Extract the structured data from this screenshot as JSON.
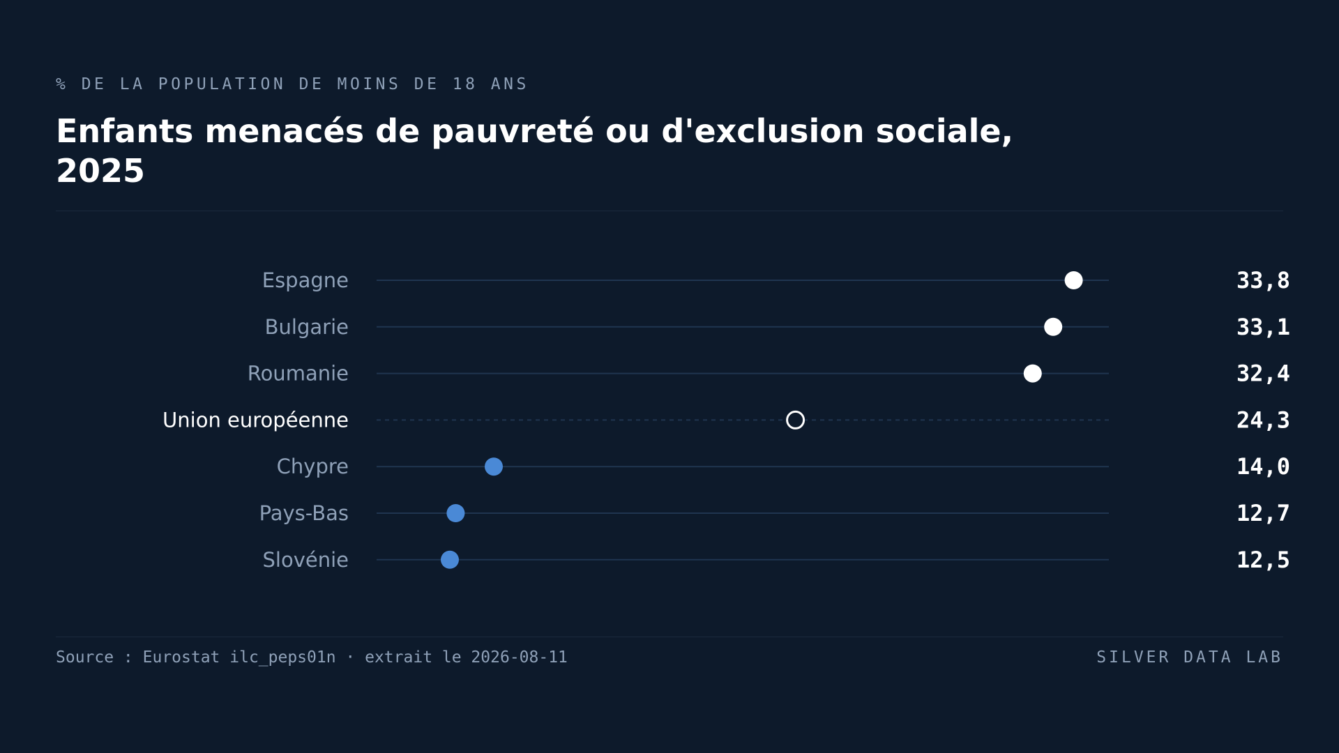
{
  "header": {
    "kicker": "% DE LA POPULATION DE MOINS DE 18 ANS",
    "title": "Enfants menacés de pauvreté ou d'exclusion sociale, 2025"
  },
  "footer": {
    "source": "Source : Eurostat ilc_peps01n · extrait le 2026-08-11",
    "brand": "SILVER DATA LAB"
  },
  "colors": {
    "background": "#0d1a2b",
    "track": "#1f3550",
    "high_dot": "#ffffff",
    "low_dot": "#4a89d6",
    "reference_dot_stroke": "#ffffff",
    "label": "#8fa1b8",
    "reference_label": "#ffffff",
    "value": "#ffffff"
  },
  "chart_data": {
    "type": "dot",
    "title": "Enfants menacés de pauvreté ou d'exclusion sociale, 2025",
    "subtitle": "% DE LA POPULATION DE MOINS DE 18 ANS",
    "xlabel": "",
    "ylabel": "",
    "xlim": [
      10,
      35
    ],
    "grid": false,
    "legend": "none",
    "categories": [
      "Espagne",
      "Bulgarie",
      "Roumanie",
      "Union européenne",
      "Chypre",
      "Pays-Bas",
      "Slovénie"
    ],
    "values": [
      33.8,
      33.1,
      32.4,
      24.3,
      14.0,
      12.7,
      12.5
    ],
    "value_labels": [
      "33,8",
      "33,1",
      "32,4",
      "24,3",
      "14,0",
      "12,7",
      "12,5"
    ],
    "groups": [
      "high",
      "high",
      "high",
      "reference",
      "low",
      "low",
      "low"
    ]
  }
}
